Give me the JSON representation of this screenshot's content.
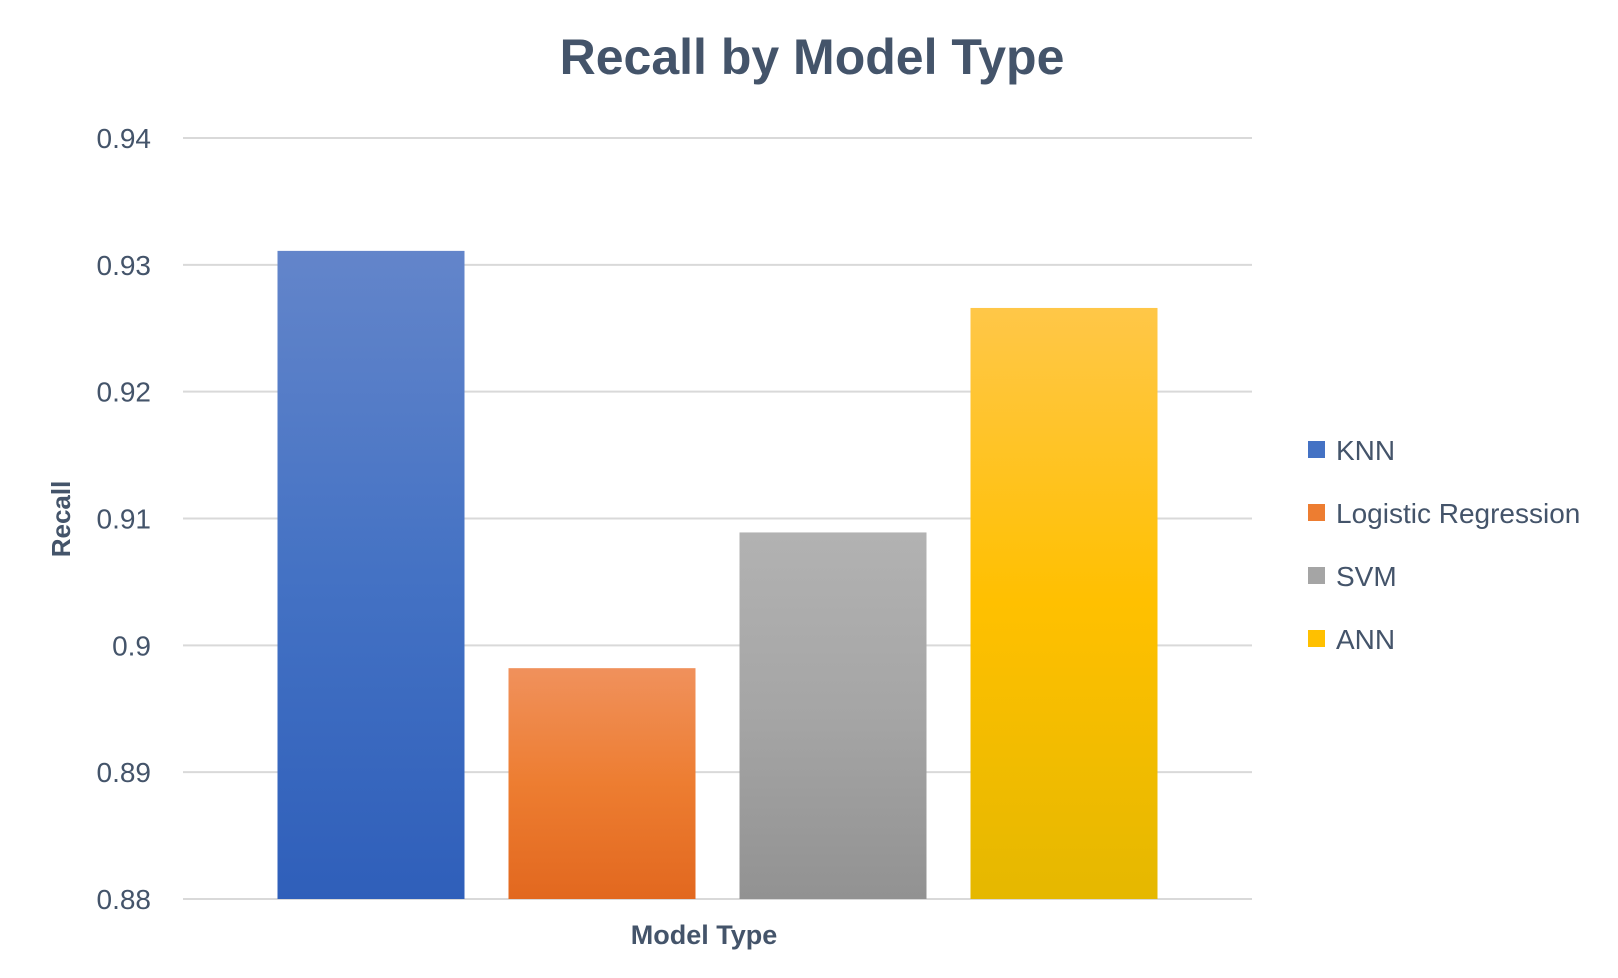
{
  "chart_data": {
    "type": "bar",
    "title": "Recall by Model Type",
    "xlabel": "Model Type",
    "ylabel": "Recall",
    "ylim": [
      0.88,
      0.94
    ],
    "yticks": [
      "0.88",
      "0.89",
      "0.9",
      "0.91",
      "0.92",
      "0.93",
      "0.94"
    ],
    "grid": true,
    "legend_position": "right",
    "categories": [
      ""
    ],
    "series": [
      {
        "name": "KNN",
        "values": [
          0.9311
        ],
        "color": "#4472c4",
        "color_light": "#6385ca",
        "color_dark": "#2f5fba"
      },
      {
        "name": "Logistic Regression",
        "values": [
          0.8982
        ],
        "color": "#ed7d31",
        "color_light": "#f0915c",
        "color_dark": "#e2681f"
      },
      {
        "name": "SVM",
        "values": [
          0.9089
        ],
        "color": "#a5a5a5",
        "color_light": "#b2b2b2",
        "color_dark": "#929292"
      },
      {
        "name": "ANN",
        "values": [
          0.9266
        ],
        "color": "#ffc000",
        "color_light": "#ffc748",
        "color_dark": "#e5b800"
      }
    ]
  },
  "colors": {
    "text": "#44546a",
    "grid": "#d9d9d9",
    "background": "#ffffff"
  }
}
